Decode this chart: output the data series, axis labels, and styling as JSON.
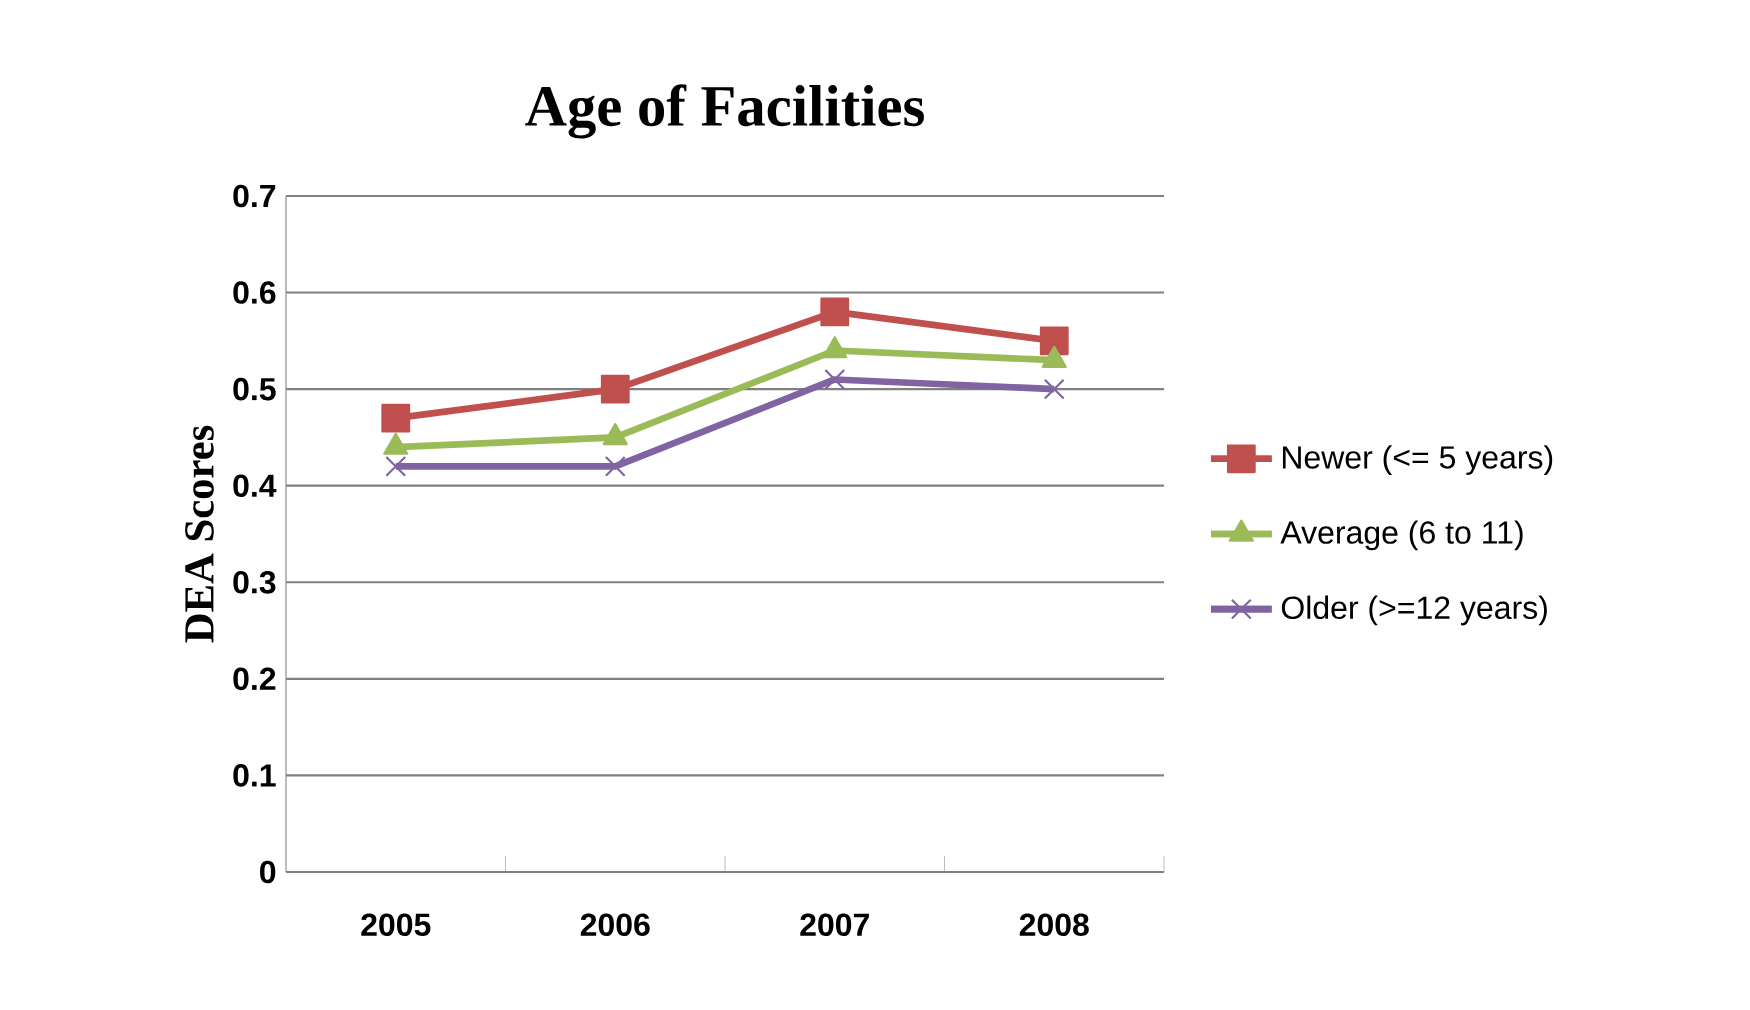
{
  "chart_data": {
    "type": "line",
    "title": "Age of Facilities",
    "ylabel": "DEA Scores",
    "categories": [
      "2005",
      "2006",
      "2007",
      "2008"
    ],
    "series": [
      {
        "name": "Newer (<= 5 years)",
        "color": "#c0504d",
        "marker": "square",
        "values": [
          0.47,
          0.5,
          0.58,
          0.55
        ]
      },
      {
        "name": "Average (6 to 11)",
        "color": "#9bbb59",
        "marker": "triangle",
        "values": [
          0.44,
          0.45,
          0.54,
          0.53
        ]
      },
      {
        "name": "Older (>=12 years)",
        "color": "#8064a2",
        "marker": "cross",
        "values": [
          0.42,
          0.42,
          0.51,
          0.5
        ]
      }
    ],
    "ylim": [
      0,
      0.7
    ],
    "yticks": [
      0,
      0.1,
      0.2,
      0.3,
      0.4,
      0.5,
      0.6,
      0.7
    ],
    "grid": "y",
    "legend": "right",
    "line_style": "solid"
  }
}
